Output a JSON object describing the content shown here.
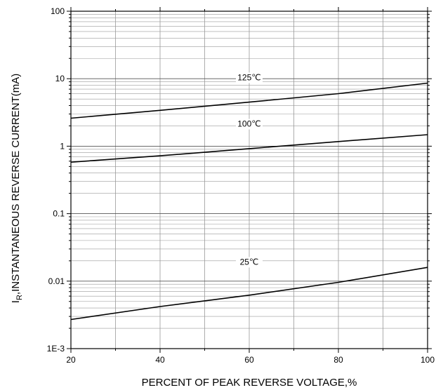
{
  "chart_data": {
    "type": "line",
    "title": "",
    "xlabel": "PERCENT OF PEAK REVERSE VOLTAGE,%",
    "ylabel_main": "I",
    "ylabel_sub": "R",
    "ylabel_rest": ",INSTANTANEOUS REVERSE CURRENT(mA)",
    "xlim": [
      20,
      100
    ],
    "ylim": [
      0.001,
      100
    ],
    "yscale": "log",
    "grid": true,
    "x_ticks": [
      20,
      40,
      60,
      80,
      100
    ],
    "x_tick_labels": [
      "20",
      "40",
      "60",
      "80",
      "100"
    ],
    "y_ticks": [
      0.001,
      0.01,
      0.1,
      1,
      10,
      100
    ],
    "y_tick_labels": [
      "1E-3",
      "0.01",
      "0.1",
      "1",
      "10",
      "100"
    ],
    "series": [
      {
        "name": "125℃",
        "x": [
          20,
          40,
          60,
          80,
          100
        ],
        "values": [
          2.6,
          3.4,
          4.5,
          6.0,
          8.6
        ],
        "label_at": [
          60,
          9.5
        ]
      },
      {
        "name": "100℃",
        "x": [
          20,
          40,
          60,
          80,
          100
        ],
        "values": [
          0.58,
          0.72,
          0.92,
          1.17,
          1.48
        ],
        "label_at": [
          60,
          1.95
        ]
      },
      {
        "name": "25℃",
        "x": [
          20,
          40,
          60,
          80,
          100
        ],
        "values": [
          0.0027,
          0.0042,
          0.0062,
          0.0096,
          0.016
        ],
        "label_at": [
          60,
          0.0175
        ]
      }
    ]
  }
}
